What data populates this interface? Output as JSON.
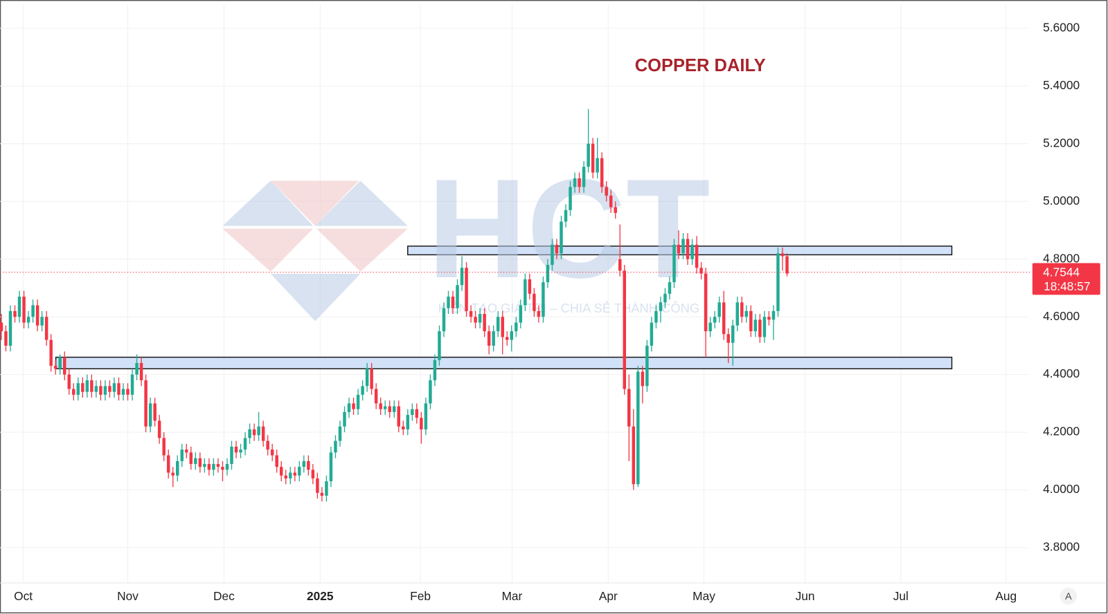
{
  "chart_data": {
    "type": "candlestick",
    "title": "COPPER DAILY",
    "watermark": {
      "logo_text": "HCT",
      "tagline": "KIẾN TẠO GIÁ TRỊ – CHIA SẺ THÀNH CÔNG"
    },
    "up_color": "#22ab94",
    "down_color": "#f23645",
    "grid": true,
    "xlim": [
      -0.3,
      227.4
    ],
    "xticks": [
      {
        "value": 4.85,
        "label": "Oct"
      },
      {
        "value": 28.0,
        "label": "Nov"
      },
      {
        "value": 49.3,
        "label": "Dec"
      },
      {
        "value": 70.6,
        "label": "2025"
      },
      {
        "value": 92.8,
        "label": "Feb"
      },
      {
        "value": 113.1,
        "label": "Mar"
      },
      {
        "value": 134.4,
        "label": "Apr"
      },
      {
        "value": 155.6,
        "label": "May"
      },
      {
        "value": 178.0,
        "label": "Jun"
      },
      {
        "value": 199.2,
        "label": "Jul"
      },
      {
        "value": 222.5,
        "label": "Aug"
      }
    ],
    "ylim": [
      3.678,
      5.683
    ],
    "yticks": [
      {
        "value": 3.8,
        "label": "3.8000"
      },
      {
        "value": 4.0,
        "label": "4.0000"
      },
      {
        "value": 4.2,
        "label": "4.2000"
      },
      {
        "value": 4.4,
        "label": "4.4000"
      },
      {
        "value": 4.6,
        "label": "4.6000"
      },
      {
        "value": 4.8,
        "label": "4.8000"
      },
      {
        "value": 5.0,
        "label": "5.0000"
      },
      {
        "value": 5.2,
        "label": "5.2000"
      },
      {
        "value": 5.4,
        "label": "5.4000"
      },
      {
        "value": 5.6,
        "label": "5.6000"
      }
    ],
    "zones": [
      [
        4.815,
        4.845
      ],
      [
        4.42,
        4.46
      ]
    ],
    "last_price": 4.7544,
    "countdown": "18:48:57",
    "scale_button": "A",
    "ohlc": [
      [
        4.58,
        4.61,
        4.52,
        4.55
      ],
      [
        4.55,
        4.57,
        4.48,
        4.5
      ],
      [
        4.5,
        4.64,
        4.48,
        4.62
      ],
      [
        4.62,
        4.64,
        4.58,
        4.6
      ],
      [
        4.6,
        4.69,
        4.58,
        4.67
      ],
      [
        4.67,
        4.69,
        4.56,
        4.58
      ],
      [
        4.58,
        4.62,
        4.56,
        4.6
      ],
      [
        4.6,
        4.66,
        4.58,
        4.64
      ],
      [
        4.64,
        4.66,
        4.55,
        4.57
      ],
      [
        4.57,
        4.62,
        4.55,
        4.6
      ],
      [
        4.6,
        4.62,
        4.5,
        4.52
      ],
      [
        4.52,
        4.54,
        4.41,
        4.43
      ],
      [
        4.43,
        4.45,
        4.4,
        4.42
      ],
      [
        4.42,
        4.47,
        4.4,
        4.46
      ],
      [
        4.46,
        4.48,
        4.38,
        4.4
      ],
      [
        4.4,
        4.42,
        4.33,
        4.35
      ],
      [
        4.35,
        4.37,
        4.31,
        4.33
      ],
      [
        4.33,
        4.39,
        4.31,
        4.37
      ],
      [
        4.37,
        4.39,
        4.32,
        4.34
      ],
      [
        4.34,
        4.4,
        4.32,
        4.38
      ],
      [
        4.38,
        4.4,
        4.32,
        4.34
      ],
      [
        4.34,
        4.38,
        4.32,
        4.36
      ],
      [
        4.36,
        4.38,
        4.31,
        4.33
      ],
      [
        4.33,
        4.38,
        4.31,
        4.36
      ],
      [
        4.36,
        4.38,
        4.32,
        4.34
      ],
      [
        4.34,
        4.39,
        4.32,
        4.37
      ],
      [
        4.37,
        4.39,
        4.31,
        4.33
      ],
      [
        4.33,
        4.37,
        4.31,
        4.35
      ],
      [
        4.35,
        4.37,
        4.31,
        4.33
      ],
      [
        4.33,
        4.42,
        4.31,
        4.4
      ],
      [
        4.4,
        4.47,
        4.38,
        4.44
      ],
      [
        4.44,
        4.46,
        4.36,
        4.38
      ],
      [
        4.38,
        4.4,
        4.2,
        4.22
      ],
      [
        4.22,
        4.32,
        4.2,
        4.3
      ],
      [
        4.3,
        4.32,
        4.22,
        4.24
      ],
      [
        4.24,
        4.26,
        4.16,
        4.18
      ],
      [
        4.18,
        4.2,
        4.1,
        4.12
      ],
      [
        4.12,
        4.14,
        4.04,
        4.06
      ],
      [
        4.06,
        4.08,
        4.01,
        4.05
      ],
      [
        4.05,
        4.12,
        4.03,
        4.1
      ],
      [
        4.1,
        4.16,
        4.08,
        4.14
      ],
      [
        4.14,
        4.16,
        4.11,
        4.13
      ],
      [
        4.13,
        4.15,
        4.07,
        4.09
      ],
      [
        4.09,
        4.13,
        4.07,
        4.11
      ],
      [
        4.11,
        4.13,
        4.06,
        4.08
      ],
      [
        4.08,
        4.11,
        4.06,
        4.09
      ],
      [
        4.09,
        4.11,
        4.05,
        4.07
      ],
      [
        4.07,
        4.11,
        4.05,
        4.09
      ],
      [
        4.09,
        4.11,
        4.06,
        4.08
      ],
      [
        4.08,
        4.1,
        4.03,
        4.07
      ],
      [
        4.07,
        4.11,
        4.05,
        4.09
      ],
      [
        4.09,
        4.17,
        4.07,
        4.15
      ],
      [
        4.15,
        4.17,
        4.11,
        4.13
      ],
      [
        4.13,
        4.16,
        4.11,
        4.14
      ],
      [
        4.14,
        4.2,
        4.12,
        4.18
      ],
      [
        4.18,
        4.23,
        4.16,
        4.21
      ],
      [
        4.21,
        4.23,
        4.17,
        4.19
      ],
      [
        4.19,
        4.27,
        4.17,
        4.22
      ],
      [
        4.22,
        4.24,
        4.15,
        4.17
      ],
      [
        4.17,
        4.19,
        4.12,
        4.14
      ],
      [
        4.14,
        4.16,
        4.1,
        4.12
      ],
      [
        4.12,
        4.14,
        4.06,
        4.08
      ],
      [
        4.08,
        4.1,
        4.03,
        4.05
      ],
      [
        4.05,
        4.07,
        4.02,
        4.04
      ],
      [
        4.04,
        4.08,
        4.02,
        4.06
      ],
      [
        4.06,
        4.08,
        4.03,
        4.05
      ],
      [
        4.05,
        4.1,
        4.03,
        4.08
      ],
      [
        4.08,
        4.12,
        4.06,
        4.1
      ],
      [
        4.1,
        4.12,
        4.05,
        4.07
      ],
      [
        4.07,
        4.09,
        4.02,
        4.04
      ],
      [
        4.04,
        4.06,
        3.97,
        3.99
      ],
      [
        3.99,
        4.01,
        3.96,
        3.98
      ],
      [
        3.98,
        4.05,
        3.96,
        4.03
      ],
      [
        4.03,
        4.15,
        4.01,
        4.13
      ],
      [
        4.13,
        4.19,
        4.11,
        4.17
      ],
      [
        4.17,
        4.24,
        4.15,
        4.22
      ],
      [
        4.22,
        4.29,
        4.2,
        4.27
      ],
      [
        4.27,
        4.32,
        4.25,
        4.3
      ],
      [
        4.3,
        4.32,
        4.26,
        4.28
      ],
      [
        4.28,
        4.35,
        4.26,
        4.33
      ],
      [
        4.33,
        4.38,
        4.31,
        4.36
      ],
      [
        4.36,
        4.44,
        4.34,
        4.42
      ],
      [
        4.42,
        4.44,
        4.33,
        4.35
      ],
      [
        4.35,
        4.37,
        4.28,
        4.3
      ],
      [
        4.3,
        4.32,
        4.26,
        4.28
      ],
      [
        4.28,
        4.31,
        4.26,
        4.29
      ],
      [
        4.29,
        4.31,
        4.25,
        4.27
      ],
      [
        4.27,
        4.31,
        4.25,
        4.29
      ],
      [
        4.29,
        4.31,
        4.2,
        4.22
      ],
      [
        4.22,
        4.24,
        4.19,
        4.21
      ],
      [
        4.21,
        4.28,
        4.19,
        4.26
      ],
      [
        4.26,
        4.3,
        4.24,
        4.28
      ],
      [
        4.28,
        4.3,
        4.23,
        4.25
      ],
      [
        4.25,
        4.27,
        4.16,
        4.21
      ],
      [
        4.21,
        4.32,
        4.19,
        4.3
      ],
      [
        4.3,
        4.4,
        4.28,
        4.38
      ],
      [
        4.38,
        4.47,
        4.36,
        4.45
      ],
      [
        4.45,
        4.57,
        4.43,
        4.55
      ],
      [
        4.55,
        4.65,
        4.53,
        4.63
      ],
      [
        4.63,
        4.69,
        4.61,
        4.67
      ],
      [
        4.67,
        4.69,
        4.61,
        4.63
      ],
      [
        4.63,
        4.73,
        4.61,
        4.71
      ],
      [
        4.71,
        4.81,
        4.69,
        4.77
      ],
      [
        4.77,
        4.79,
        4.6,
        4.62
      ],
      [
        4.62,
        4.64,
        4.58,
        4.6
      ],
      [
        4.6,
        4.62,
        4.56,
        4.58
      ],
      [
        4.58,
        4.63,
        4.56,
        4.61
      ],
      [
        4.61,
        4.63,
        4.53,
        4.55
      ],
      [
        4.55,
        4.57,
        4.47,
        4.5
      ],
      [
        4.5,
        4.57,
        4.48,
        4.55
      ],
      [
        4.55,
        4.62,
        4.53,
        4.6
      ],
      [
        4.6,
        4.62,
        4.47,
        4.53
      ],
      [
        4.53,
        4.55,
        4.5,
        4.52
      ],
      [
        4.52,
        4.57,
        4.48,
        4.55
      ],
      [
        4.55,
        4.6,
        4.53,
        4.58
      ],
      [
        4.58,
        4.66,
        4.56,
        4.64
      ],
      [
        4.64,
        4.75,
        4.62,
        4.73
      ],
      [
        4.73,
        4.75,
        4.66,
        4.68
      ],
      [
        4.68,
        4.7,
        4.6,
        4.62
      ],
      [
        4.62,
        4.64,
        4.58,
        4.6
      ],
      [
        4.6,
        4.74,
        4.58,
        4.72
      ],
      [
        4.72,
        4.8,
        4.7,
        4.78
      ],
      [
        4.78,
        4.87,
        4.76,
        4.85
      ],
      [
        4.85,
        4.87,
        4.8,
        4.82
      ],
      [
        4.82,
        4.95,
        4.8,
        4.93
      ],
      [
        4.93,
        4.99,
        4.91,
        4.97
      ],
      [
        4.97,
        5.07,
        4.95,
        5.05
      ],
      [
        5.05,
        5.1,
        5.03,
        5.08
      ],
      [
        5.08,
        5.1,
        5.03,
        5.05
      ],
      [
        5.05,
        5.14,
        5.03,
        5.12
      ],
      [
        5.12,
        5.32,
        5.1,
        5.2
      ],
      [
        5.2,
        5.22,
        5.08,
        5.1
      ],
      [
        5.1,
        5.22,
        5.08,
        5.15
      ],
      [
        5.15,
        5.17,
        5.03,
        5.05
      ],
      [
        5.05,
        5.07,
        5.0,
        5.02
      ],
      [
        5.02,
        5.04,
        4.96,
        4.98
      ],
      [
        4.98,
        5.0,
        4.94,
        4.96
      ],
      [
        4.8,
        4.92,
        4.74,
        4.76
      ],
      [
        4.76,
        4.78,
        4.33,
        4.35
      ],
      [
        4.35,
        4.4,
        4.1,
        4.22
      ],
      [
        4.22,
        4.28,
        4.0,
        4.02
      ],
      [
        4.02,
        4.43,
        4.01,
        4.41
      ],
      [
        4.41,
        4.43,
        4.3,
        4.36
      ],
      [
        4.36,
        4.52,
        4.34,
        4.5
      ],
      [
        4.5,
        4.6,
        4.48,
        4.58
      ],
      [
        4.58,
        4.64,
        4.56,
        4.62
      ],
      [
        4.62,
        4.67,
        4.58,
        4.65
      ],
      [
        4.65,
        4.7,
        4.63,
        4.68
      ],
      [
        4.68,
        4.74,
        4.66,
        4.72
      ],
      [
        4.72,
        4.87,
        4.7,
        4.85
      ],
      [
        4.85,
        4.9,
        4.8,
        4.82
      ],
      [
        4.82,
        4.89,
        4.8,
        4.87
      ],
      [
        4.87,
        4.89,
        4.78,
        4.8
      ],
      [
        4.8,
        4.87,
        4.78,
        4.85
      ],
      [
        4.85,
        4.88,
        4.75,
        4.77
      ],
      [
        4.77,
        4.79,
        4.73,
        4.75
      ],
      [
        4.75,
        4.77,
        4.46,
        4.55
      ],
      [
        4.55,
        4.6,
        4.53,
        4.58
      ],
      [
        4.58,
        4.62,
        4.56,
        4.6
      ],
      [
        4.6,
        4.67,
        4.58,
        4.65
      ],
      [
        4.65,
        4.69,
        4.52,
        4.54
      ],
      [
        4.54,
        4.56,
        4.44,
        4.51
      ],
      [
        4.51,
        4.59,
        4.43,
        4.57
      ],
      [
        4.57,
        4.67,
        4.55,
        4.65
      ],
      [
        4.65,
        4.67,
        4.58,
        4.6
      ],
      [
        4.6,
        4.64,
        4.58,
        4.62
      ],
      [
        4.62,
        4.64,
        4.53,
        4.55
      ],
      [
        4.55,
        4.61,
        4.53,
        4.59
      ],
      [
        4.59,
        4.61,
        4.51,
        4.53
      ],
      [
        4.53,
        4.62,
        4.51,
        4.6
      ],
      [
        4.6,
        4.62,
        4.57,
        4.59
      ],
      [
        4.59,
        4.64,
        4.52,
        4.62
      ],
      [
        4.62,
        4.84,
        4.6,
        4.82
      ],
      [
        4.82,
        4.84,
        4.76,
        4.81
      ],
      [
        4.81,
        4.82,
        4.74,
        4.75
      ]
    ]
  }
}
